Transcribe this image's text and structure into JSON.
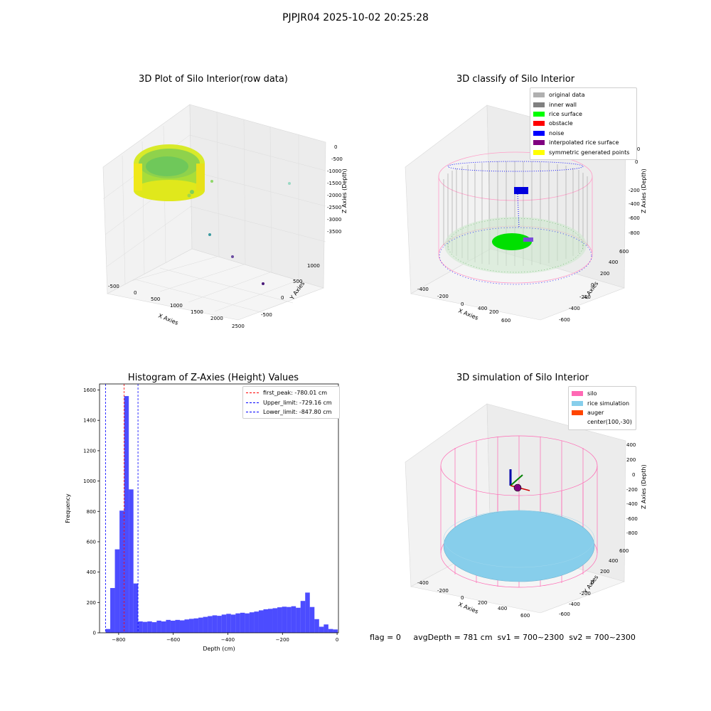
{
  "suptitle": "PJPJR04 2025-10-02 20:25:28",
  "panels": {
    "raw": {
      "title": "3D Plot of Silo Interior(row data)",
      "xlabel": "X Axies",
      "ylabel": "Y Axies",
      "zlabel": "Z Axies (Depth)",
      "xticks": [
        "-500",
        "0",
        "500",
        "1000",
        "1500",
        "2000",
        "2500"
      ],
      "yticks": [
        "-500",
        "0",
        "500",
        "1000"
      ],
      "zticks": [
        "0",
        "-500",
        "-1000",
        "-1500",
        "-2000",
        "-2500",
        "-3000",
        "-3500"
      ]
    },
    "classify": {
      "title": "3D classify of Silo Interior",
      "xlabel": "X Axies",
      "ylabel": "Y Axies",
      "zlabel": "Z Axies (Depth)",
      "xticks": [
        "-400",
        "-200",
        "0",
        "200",
        "400",
        "600"
      ],
      "yticks": [
        "-600",
        "-400",
        "-200",
        "0",
        "200",
        "400",
        "600"
      ],
      "zticks": [
        "200",
        "0",
        "-200",
        "-400",
        "-600",
        "-800"
      ],
      "legend": [
        {
          "label": "original data",
          "color": "#b0b0b0"
        },
        {
          "label": "inner wall",
          "color": "#808080"
        },
        {
          "label": "rice surface",
          "color": "#00ff00"
        },
        {
          "label": "obstacle",
          "color": "#ff0000"
        },
        {
          "label": "noise",
          "color": "#0000ff"
        },
        {
          "label": "interpolated rice surface",
          "color": "#800080"
        },
        {
          "label": "symmetric generated points",
          "color": "#ffff00"
        }
      ]
    },
    "simulation": {
      "title": "3D simulation of Silo Interior",
      "xlabel": "X Axies",
      "ylabel": "Y Axies",
      "zlabel": "Z Axies (Depth)",
      "xticks": [
        "-400",
        "-200",
        "0",
        "200",
        "400",
        "600"
      ],
      "yticks": [
        "-600",
        "-400",
        "-200",
        "0",
        "200",
        "400",
        "600"
      ],
      "zticks": [
        "400",
        "200",
        "0",
        "-200",
        "-400",
        "-600",
        "-800"
      ],
      "legend": [
        {
          "label": "silo",
          "color": "#ff69b4"
        },
        {
          "label": "rice simulation",
          "color": "#87ceeb"
        },
        {
          "label": "auger",
          "color": "#ff4500"
        },
        {
          "label": "center(100,-30)",
          "color": ""
        }
      ]
    }
  },
  "info_text": "flag = 0     avgDepth = 781 cm  sv1 = 700~2300  sv2 = 700~2300",
  "chart_data": {
    "type": "bar",
    "title": "Histogram of Z-Axies (Height) Values",
    "xlabel": "Depth (cm)",
    "ylabel": "Frequency",
    "xlim": [
      -870,
      5
    ],
    "ylim": [
      0,
      1640
    ],
    "xticks": [
      -800,
      -600,
      -400,
      -200,
      0
    ],
    "yticks": [
      0,
      200,
      400,
      600,
      800,
      1000,
      1200,
      1400,
      1600
    ],
    "bin_width": 17,
    "bin_start": -847.8,
    "values": [
      25,
      295,
      550,
      805,
      1560,
      945,
      325,
      75,
      72,
      75,
      70,
      80,
      75,
      85,
      80,
      85,
      82,
      88,
      92,
      95,
      100,
      105,
      110,
      115,
      112,
      120,
      125,
      120,
      128,
      132,
      128,
      135,
      140,
      148,
      155,
      158,
      162,
      168,
      172,
      170,
      175,
      165,
      210,
      265,
      170,
      90,
      40,
      55,
      25,
      22
    ],
    "bar_color": "#0000ff",
    "vlines": [
      {
        "label": "first_peak: -780.01 cm",
        "x": -780.01,
        "color": "#ff0000"
      },
      {
        "label": "Upper_limit: -729.16 cm",
        "x": -729.16,
        "color": "#0000ff"
      },
      {
        "label": "Lower_limit: -847.80 cm",
        "x": -847.8,
        "color": "#0000ff"
      }
    ],
    "legend_position": "top-right"
  }
}
